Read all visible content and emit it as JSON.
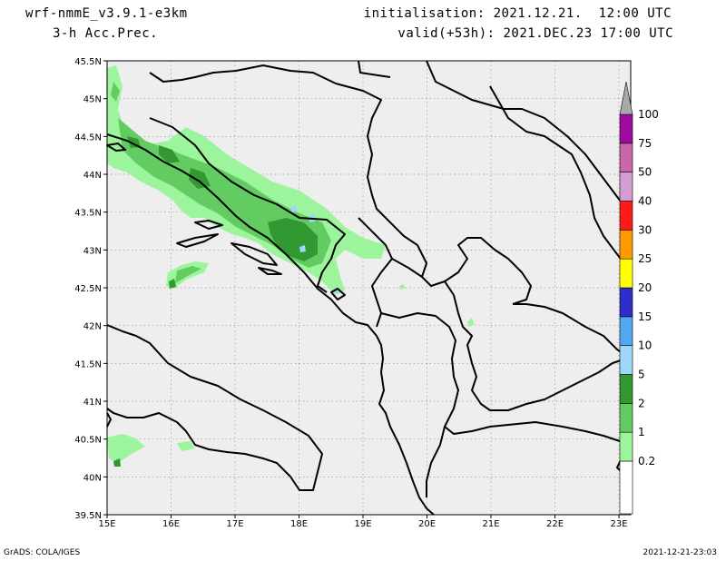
{
  "header": {
    "model": "wrf-nmmE_v3.9.1-e3km",
    "field": "3-h Acc.Prec.",
    "init": "initialisation: 2021.12.21.  12:00 UTC",
    "valid": "valid(+53h): 2021.DEC.23 17:00 UTC"
  },
  "footer": {
    "credit": "GrADS: COLA/IGES",
    "timestamp": "2021-12-21-23:03"
  },
  "map": {
    "lon_ticks": [
      "15E",
      "16E",
      "17E",
      "18E",
      "19E",
      "20E",
      "21E",
      "22E",
      "23E"
    ],
    "lat_ticks": [
      "45.5N",
      "45N",
      "44.5N",
      "44N",
      "43.5N",
      "43N",
      "42.5N",
      "42N",
      "41.5N",
      "41N",
      "40.5N",
      "40N",
      "39.5N"
    ],
    "background_color": "#eeeeee"
  },
  "colorbar": {
    "levels": [
      "0.2",
      "1",
      "2",
      "5",
      "10",
      "15",
      "20",
      "25",
      "30",
      "40",
      "50",
      "75",
      "100"
    ],
    "colors": [
      "#9cf59c",
      "#62cc62",
      "#329932",
      "#9ed6fa",
      "#52a8f0",
      "#2e2ec8",
      "#ffff00",
      "#ff9900",
      "#ff1a1a",
      "#d49ed4",
      "#c868a8",
      "#a00aa0"
    ]
  }
}
